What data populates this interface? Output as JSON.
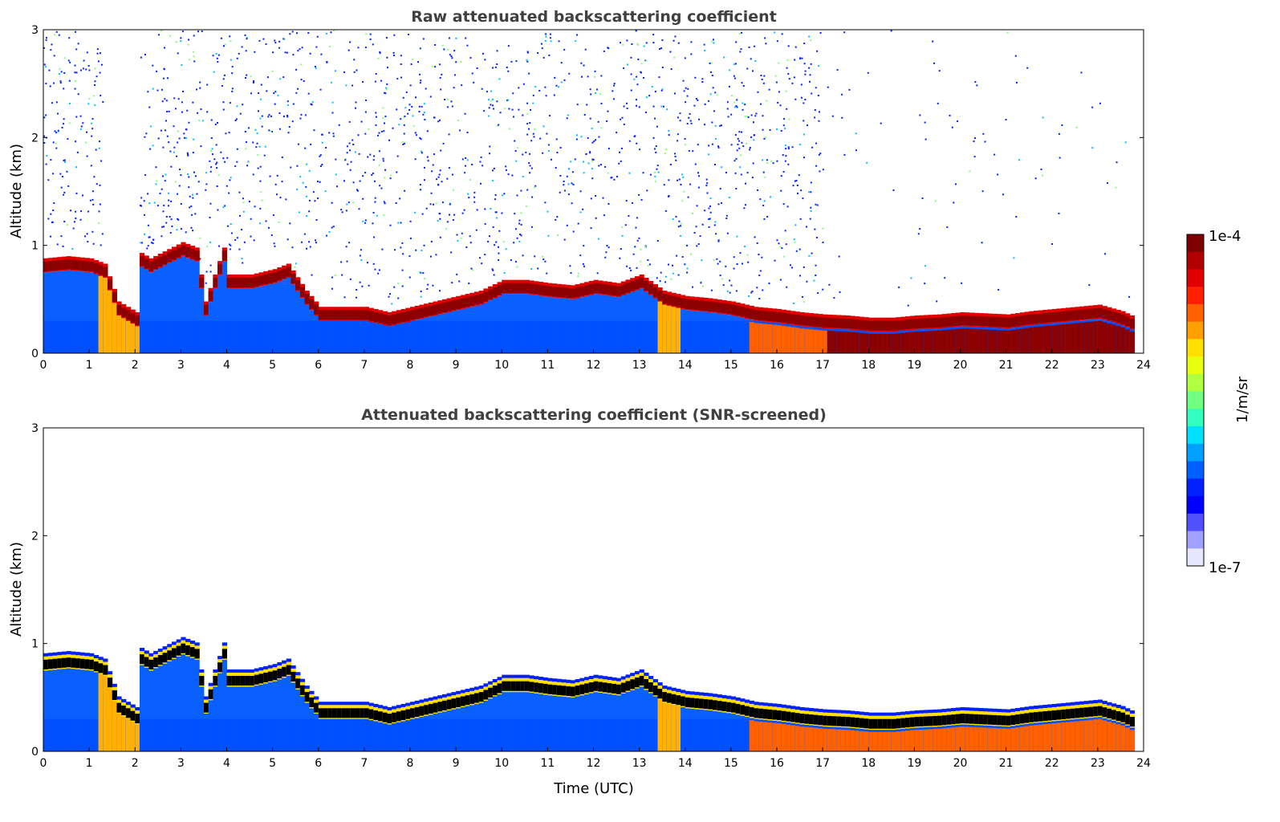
{
  "chart_data": [
    {
      "type": "heatmap",
      "title": "Raw attenuated backscattering coefficient",
      "xlabel": "",
      "ylabel": "Altitude (km)",
      "xlim": [
        0,
        24
      ],
      "ylim": [
        0,
        3
      ],
      "xticks": [
        "0",
        "1",
        "2",
        "3",
        "4",
        "5",
        "6",
        "7",
        "8",
        "9",
        "10",
        "11",
        "12",
        "13",
        "14",
        "15",
        "16",
        "17",
        "18",
        "19",
        "20",
        "21",
        "22",
        "23",
        "24"
      ],
      "yticks": [
        "0",
        "1",
        "2",
        "3"
      ],
      "noise": true
    },
    {
      "type": "heatmap",
      "title": "Attenuated backscattering coefficient (SNR-screened)",
      "xlabel": "Time (UTC)",
      "ylabel": "Altitude (km)",
      "xlim": [
        0,
        24
      ],
      "ylim": [
        0,
        3
      ],
      "xticks": [
        "0",
        "1",
        "2",
        "3",
        "4",
        "5",
        "6",
        "7",
        "8",
        "9",
        "10",
        "11",
        "12",
        "13",
        "14",
        "15",
        "16",
        "17",
        "18",
        "19",
        "20",
        "21",
        "22",
        "23",
        "24"
      ],
      "yticks": [
        "0",
        "1",
        "2",
        "3"
      ],
      "noise": false
    }
  ],
  "layer_top_km": {
    "time_utc": [
      0,
      0.5,
      1,
      1.3,
      1.6,
      2,
      2.1,
      2.3,
      3,
      3.3,
      3.5,
      3.9,
      4,
      4.5,
      5,
      5.3,
      5.7,
      6,
      6.5,
      7,
      7.5,
      8,
      8.5,
      9,
      9.5,
      10,
      10.5,
      11,
      11.5,
      12,
      12.5,
      13,
      13.5,
      14,
      14.5,
      15,
      15.5,
      16,
      16.5,
      17,
      17.5,
      18,
      18.5,
      19,
      19.5,
      20,
      20.5,
      21,
      21.5,
      22,
      22.5,
      23,
      23.5,
      23.8
    ],
    "altitude": [
      0.85,
      0.87,
      0.85,
      0.8,
      0.45,
      0.35,
      0.9,
      0.85,
      1.0,
      0.95,
      0.45,
      0.95,
      0.7,
      0.7,
      0.75,
      0.8,
      0.55,
      0.4,
      0.4,
      0.4,
      0.35,
      0.4,
      0.45,
      0.5,
      0.55,
      0.65,
      0.65,
      0.62,
      0.6,
      0.65,
      0.62,
      0.7,
      0.55,
      0.5,
      0.48,
      0.45,
      0.4,
      0.38,
      0.35,
      0.33,
      0.32,
      0.3,
      0.3,
      0.32,
      0.33,
      0.35,
      0.34,
      0.33,
      0.36,
      0.38,
      0.4,
      0.42,
      0.36,
      0.3
    ]
  },
  "colorbar": {
    "label": "1/m/sr",
    "max_label": "1e-4",
    "min_label": "1e-7",
    "colors": [
      "#7f0000",
      "#b00000",
      "#e00000",
      "#ff2000",
      "#ff6000",
      "#ffa000",
      "#ffe000",
      "#e8ff10",
      "#b0ff40",
      "#70ff80",
      "#30ffc0",
      "#00e0ff",
      "#00a0ff",
      "#0060ff",
      "#0020ff",
      "#0000ff",
      "#5050ff",
      "#a0a0ff",
      "#e6e6ff"
    ]
  }
}
